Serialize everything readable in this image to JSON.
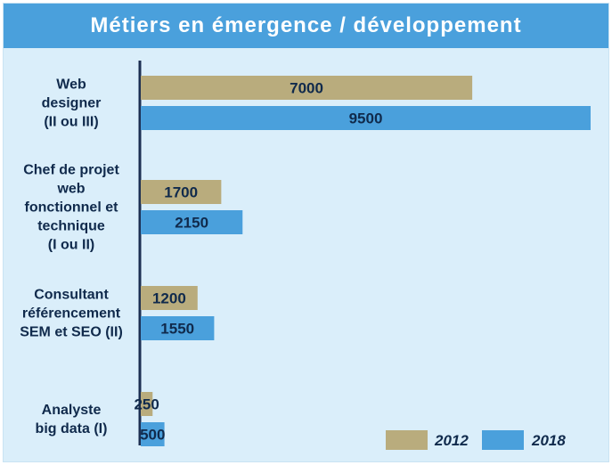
{
  "chart_data": {
    "type": "bar",
    "orientation": "horizontal",
    "title": "Métiers en émergence / développement",
    "categories": [
      [
        "Web",
        "designer",
        "(II ou III)"
      ],
      [
        "Chef de projet",
        "web",
        "fonctionnel et",
        "technique",
        "(I ou II)"
      ],
      [
        "Consultant",
        "référencement",
        "SEM et SEO (II)"
      ],
      [
        "Analyste",
        "big data (I)"
      ]
    ],
    "series": [
      {
        "name": "2012",
        "color": "#b9ac7d",
        "values": [
          7000,
          1700,
          1200,
          250
        ]
      },
      {
        "name": "2018",
        "color": "#4aa0dc",
        "values": [
          9500,
          2150,
          1550,
          500
        ]
      }
    ],
    "xlim": [
      0,
      9500
    ],
    "grid": false,
    "legend": "bottom-right"
  }
}
